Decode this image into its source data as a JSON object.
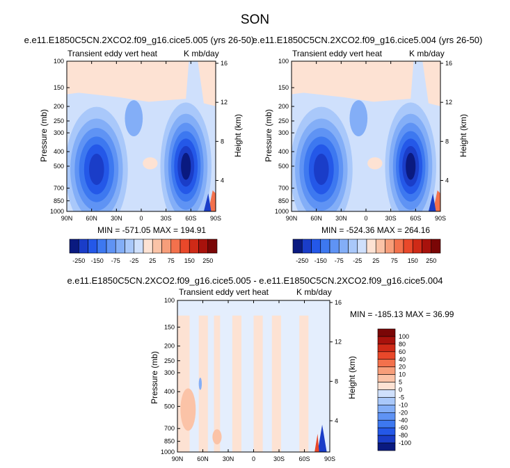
{
  "main_title": "SON",
  "colors": {
    "negative": [
      "#0a1a80",
      "#1a3dc8",
      "#2458e8",
      "#3d78f0",
      "#5f93f4",
      "#83aef7",
      "#a9c8fa",
      "#cfe0fc"
    ],
    "positive": [
      "#fde2d3",
      "#fbc3a7",
      "#f79e7a",
      "#f3714c",
      "#e9482a",
      "#cf2a17",
      "#a8120c",
      "#7a0606"
    ]
  },
  "panels": {
    "left": {
      "title": "e.e11.E1850C5CN.2XCO2.f09_g16.cice5.005 (yrs 26-50)",
      "left_string": "Transient eddy vert heat",
      "right_string": "K mb/day",
      "ylabel": "Pressure (mb)",
      "ylabel_right": "Height (km)",
      "stats": "MIN = -571.05   MAX = 194.91"
    },
    "right": {
      "title": "e.e11.E1850C5CN.2XCO2.f09_g16.cice5.004 (yrs 26-50)",
      "left_string": "Transient eddy vert heat",
      "right_string": "K mb/day",
      "ylabel": "Pressure (mb)",
      "ylabel_right": "Height (km)",
      "stats": "MIN = -524.36   MAX = 264.16"
    },
    "diff": {
      "title": "e.e11.E1850C5CN.2XCO2.f09_g16.cice5.005 - e.e11.E1850C5CN.2XCO2.f09_g16.cice5.004",
      "left_string": "Transient eddy vert heat",
      "right_string": "K mb/day",
      "ylabel": "Pressure (mb)",
      "ylabel_right": "Height (km)",
      "stats": "MIN = -185.13   MAX =  36.99"
    }
  },
  "chart_data": [
    {
      "type": "heatmap",
      "panel": "left",
      "x_ticks": [
        "90N",
        "60N",
        "30N",
        "0",
        "30S",
        "60S",
        "90S"
      ],
      "y_ticks": [
        "100",
        "150",
        "200",
        "250",
        "300",
        "400",
        "500",
        "700",
        "850",
        "1000"
      ],
      "y_ticks_right": [
        "16",
        "12",
        "8",
        "4"
      ],
      "contour_levels": [
        -250,
        -200,
        -150,
        -100,
        -75,
        -50,
        -25,
        -10,
        10,
        25,
        50,
        75,
        100,
        150,
        200,
        250
      ],
      "colorbar_labels": [
        "-250",
        "-150",
        "-75",
        "-25",
        "25",
        "75",
        "150",
        "250"
      ],
      "min": -571.05,
      "max": 194.91
    },
    {
      "type": "heatmap",
      "panel": "right",
      "x_ticks": [
        "90N",
        "60N",
        "30N",
        "0",
        "30S",
        "60S",
        "90S"
      ],
      "y_ticks": [
        "100",
        "150",
        "200",
        "250",
        "300",
        "400",
        "500",
        "700",
        "850",
        "1000"
      ],
      "y_ticks_right": [
        "16",
        "12",
        "8",
        "4"
      ],
      "contour_levels": [
        -250,
        -200,
        -150,
        -100,
        -75,
        -50,
        -25,
        -10,
        10,
        25,
        50,
        75,
        100,
        150,
        200,
        250
      ],
      "colorbar_labels": [
        "-250",
        "-150",
        "-75",
        "-25",
        "25",
        "75",
        "150",
        "250"
      ],
      "min": -524.36,
      "max": 264.16
    },
    {
      "type": "heatmap",
      "panel": "diff",
      "x_ticks": [
        "90N",
        "60N",
        "30N",
        "0",
        "30S",
        "60S",
        "90S"
      ],
      "y_ticks": [
        "100",
        "150",
        "200",
        "250",
        "300",
        "400",
        "500",
        "700",
        "850",
        "1000"
      ],
      "y_ticks_right": [
        "16",
        "12",
        "8",
        "4"
      ],
      "colorbar_labels": [
        "100",
        "80",
        "60",
        "40",
        "20",
        "10",
        "5",
        "0",
        "-5",
        "-10",
        "-20",
        "-40",
        "-60",
        "-80",
        "-100"
      ],
      "min": -185.13,
      "max": 36.99
    }
  ]
}
